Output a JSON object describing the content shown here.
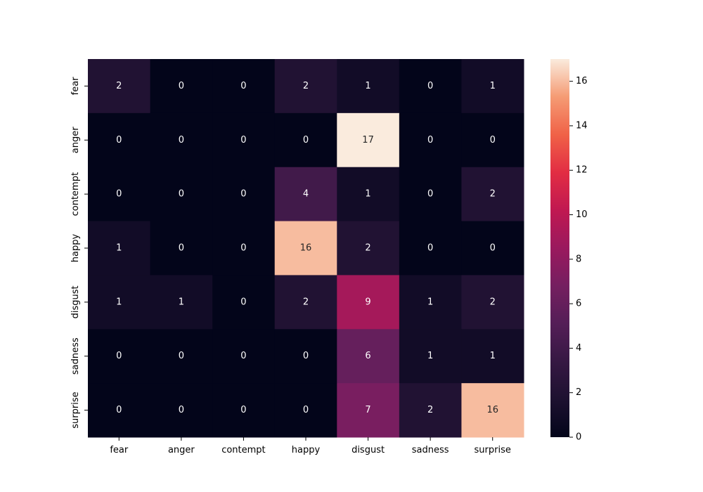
{
  "chart_data": {
    "type": "heatmap",
    "title": "",
    "xlabel": "",
    "ylabel": "",
    "x_categories": [
      "fear",
      "anger",
      "contempt",
      "happy",
      "disgust",
      "sadness",
      "surprise"
    ],
    "y_categories": [
      "fear",
      "anger",
      "contempt",
      "happy",
      "disgust",
      "sadness",
      "surprise"
    ],
    "values": [
      [
        2,
        0,
        0,
        2,
        1,
        0,
        1
      ],
      [
        0,
        0,
        0,
        0,
        17,
        0,
        0
      ],
      [
        0,
        0,
        0,
        4,
        1,
        0,
        2
      ],
      [
        1,
        0,
        0,
        16,
        2,
        0,
        0
      ],
      [
        1,
        1,
        0,
        2,
        9,
        1,
        2
      ],
      [
        0,
        0,
        0,
        0,
        6,
        1,
        1
      ],
      [
        0,
        0,
        0,
        0,
        7,
        2,
        16
      ]
    ],
    "annotated": true,
    "colormap": "rocket",
    "colorbar": {
      "min": 0,
      "max": 17,
      "ticks": [
        0,
        2,
        4,
        6,
        8,
        10,
        12,
        14,
        16
      ]
    }
  }
}
